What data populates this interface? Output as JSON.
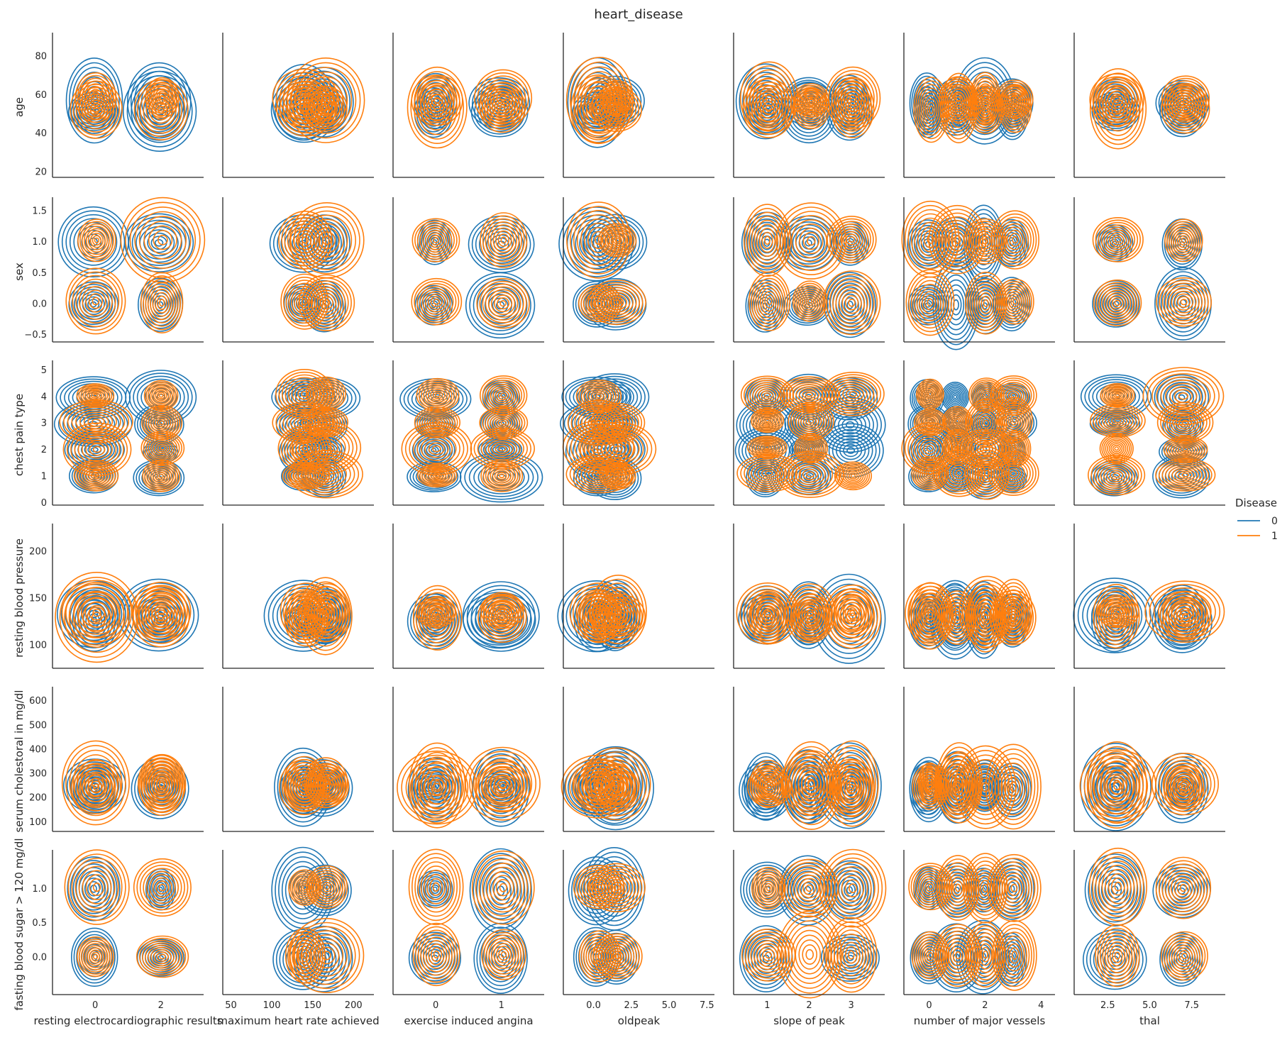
{
  "chart_data": {
    "type": "kde-pairgrid",
    "title": "heart_disease",
    "legend": {
      "title": "Disease",
      "placement": "right",
      "entries": [
        {
          "label": "0",
          "color": "#1f77b4"
        },
        {
          "label": "1",
          "color": "#ff7f0e"
        }
      ]
    },
    "x_variables": [
      {
        "label": "resting electrocardiographic results",
        "lim": [
          -1.3,
          3.3
        ],
        "ticks": [
          0,
          2
        ],
        "tick_labels": [
          "0",
          "2"
        ],
        "centers": [
          0,
          2
        ]
      },
      {
        "label": "maximum heart rate achieved",
        "lim": [
          40,
          225
        ],
        "ticks": [
          50,
          100,
          150,
          200
        ],
        "tick_labels": [
          "50",
          "100",
          "150",
          "200"
        ],
        "centers": [
          165,
          140
        ]
      },
      {
        "label": "exercise induced angina",
        "lim": [
          -0.65,
          1.65
        ],
        "ticks": [
          0,
          1
        ],
        "tick_labels": [
          "0",
          "1"
        ],
        "centers": [
          0,
          1
        ]
      },
      {
        "label": "oldpeak",
        "lim": [
          -2.0,
          8.0
        ],
        "ticks": [
          0.0,
          2.5,
          5.0,
          7.5
        ],
        "tick_labels": [
          "0.0",
          "2.5",
          "5.0",
          "7.5"
        ],
        "centers": [
          0.3,
          1.5
        ]
      },
      {
        "label": "slope of peak",
        "lim": [
          0.2,
          3.8
        ],
        "ticks": [
          1,
          2,
          3
        ],
        "tick_labels": [
          "1",
          "2",
          "3"
        ],
        "centers": [
          1,
          2,
          3
        ]
      },
      {
        "label": "number of major vessels",
        "lim": [
          -0.9,
          4.5
        ],
        "ticks": [
          0,
          2,
          4
        ],
        "tick_labels": [
          "0",
          "2",
          "4"
        ],
        "centers": [
          0,
          1,
          2,
          3
        ]
      },
      {
        "label": "thal",
        "lim": [
          0.5,
          9.5
        ],
        "ticks": [
          2.5,
          5.0,
          7.5
        ],
        "tick_labels": [
          "2.5",
          "5.0",
          "7.5"
        ],
        "centers": [
          3,
          7
        ]
      }
    ],
    "y_variables": [
      {
        "label": "age",
        "lim": [
          17,
          90
        ],
        "ticks": [
          20,
          40,
          60,
          80
        ],
        "tick_labels": [
          "20",
          "40",
          "60",
          "80"
        ],
        "centers": [
          52,
          57
        ]
      },
      {
        "label": "sex",
        "lim": [
          -0.62,
          1.65
        ],
        "ticks": [
          -0.5,
          0.0,
          0.5,
          1.0,
          1.5
        ],
        "tick_labels": [
          "−0.5",
          "0.0",
          "0.5",
          "1.0",
          "1.5"
        ],
        "centers": [
          0,
          1
        ]
      },
      {
        "label": "chest pain type",
        "lim": [
          -0.1,
          5.2
        ],
        "ticks": [
          0,
          1,
          2,
          3,
          4,
          5
        ],
        "tick_labels": [
          "0",
          "1",
          "2",
          "3",
          "4",
          "5"
        ],
        "centers": [
          1,
          2,
          3,
          4
        ]
      },
      {
        "label": "resting blood pressure",
        "lim": [
          75,
          225
        ],
        "ticks": [
          100,
          150,
          200
        ],
        "tick_labels": [
          "100",
          "150",
          "200"
        ],
        "centers": [
          128,
          133
        ]
      },
      {
        "label": "serum cholestoral in mg/dl",
        "lim": [
          60,
          640
        ],
        "ticks": [
          100,
          200,
          300,
          400,
          500,
          600
        ],
        "tick_labels": [
          "100",
          "200",
          "300",
          "400",
          "500",
          "600"
        ],
        "centers": [
          240,
          250
        ]
      },
      {
        "label": "fasting blood sugar > 120 mg/dl",
        "lim": [
          -0.55,
          1.5
        ],
        "ticks": [
          0.0,
          0.5,
          1.0
        ],
        "tick_labels": [
          "0.0",
          "0.5",
          "1.0"
        ],
        "centers": [
          0,
          1
        ]
      }
    ],
    "series": [
      {
        "name": "0",
        "color": "#1f77b4"
      },
      {
        "name": "1",
        "color": "#ff7f0e"
      }
    ],
    "grid": false,
    "contour_levels": 9
  }
}
